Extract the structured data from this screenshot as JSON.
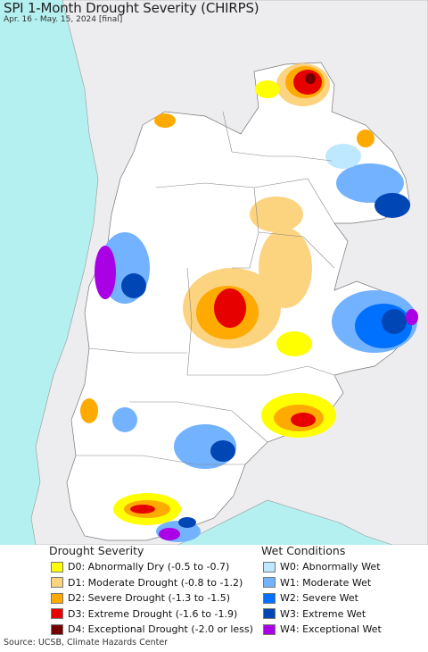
{
  "title": "SPI 1-Month Drought Severity (CHIRPS)",
  "subtitle": "Apr. 16 - May. 15, 2024 [final]",
  "legend": {
    "drought_heading": "Drought Severity",
    "wet_heading": "Wet Conditions",
    "drought": [
      {
        "label": "D0: Abnormally Dry (-0.5 to -0.7)",
        "color": "#ffff00"
      },
      {
        "label": "D1: Moderate Drought (-0.8 to -1.2)",
        "color": "#fcd37f"
      },
      {
        "label": "D2: Severe Drought (-1.3 to -1.5)",
        "color": "#ffaa00"
      },
      {
        "label": "D3: Extreme Drought (-1.6 to -1.9)",
        "color": "#e60000"
      },
      {
        "label": "D4: Exceptional Drought (-2.0 or less)",
        "color": "#730000"
      }
    ],
    "wet": [
      {
        "label": "W0: Abnormally Wet",
        "color": "#bee8ff"
      },
      {
        "label": "W1: Moderate Wet",
        "color": "#73b2ff"
      },
      {
        "label": "W2: Severe Wet",
        "color": "#0070ff"
      },
      {
        "label": "W3: Extreme Wet",
        "color": "#0046b4"
      },
      {
        "label": "W4: Exceptional Wet",
        "color": "#a900e6"
      }
    ]
  },
  "source": "Source: UCSB, Climate Hazards Center",
  "colors": {
    "ocean": "#b4f0f0",
    "outside_land": "#ededf0",
    "region_background": "#ffffff"
  }
}
